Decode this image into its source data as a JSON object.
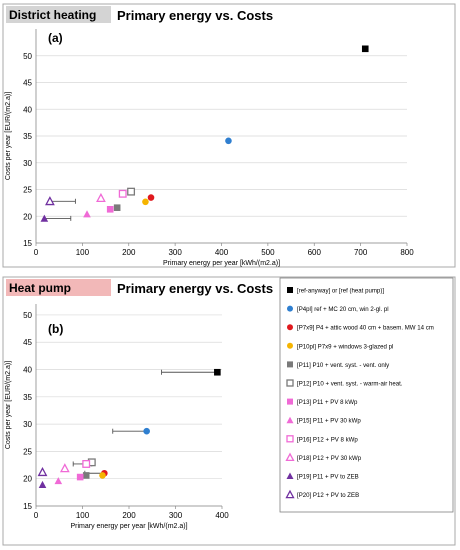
{
  "colors": {
    "district_badge": "#d4d4d4",
    "heatpump_badge": "#f2b8b8",
    "frame": "#a8a8a8",
    "black": "#000000",
    "blue": "#2f7fd0",
    "red": "#e0191e",
    "yellow": "#f5b400",
    "grey": "#7a7a7a",
    "pink": "#f06ad6",
    "purple": "#7030a0"
  },
  "chart_data": [
    {
      "type": "scatter",
      "badge": "District heating",
      "title": "Primary energy vs. Costs",
      "panel_label": "(a)",
      "xlabel": "Primary energy per year  [kWh/(m2.a)]",
      "ylabel": "Costs per year [EUR/(m2.a)]",
      "xlim": [
        0,
        800
      ],
      "ylim": [
        15,
        55
      ],
      "xticks": [
        "0",
        "100",
        "200",
        "300",
        "400",
        "500",
        "600",
        "700",
        "800"
      ],
      "yticks": [
        "15",
        "20",
        "25",
        "30",
        "35",
        "40",
        "45",
        "50"
      ],
      "points": [
        {
          "series": "ref",
          "x": 710,
          "y": 51.3
        },
        {
          "series": "P4pl",
          "x": 415,
          "y": 34.1
        },
        {
          "series": "P7x9",
          "x": 248,
          "y": 23.5
        },
        {
          "series": "P10pl",
          "x": 236,
          "y": 22.7
        },
        {
          "series": "P11",
          "x": 175,
          "y": 21.6
        },
        {
          "series": "P12",
          "x": 205,
          "y": 24.6
        },
        {
          "series": "P13",
          "x": 160,
          "y": 21.3
        },
        {
          "series": "P15",
          "x": 110,
          "y": 20.4
        },
        {
          "series": "P16",
          "x": 187,
          "y": 24.2
        },
        {
          "series": "P18",
          "x": 140,
          "y": 23.4
        },
        {
          "series": "P19",
          "x": 18,
          "y": 19.6
        },
        {
          "series": "P20",
          "x": 30,
          "y": 22.8
        }
      ],
      "error_bars": [
        {
          "y": 22.8,
          "x_from": 28,
          "x_to": 85
        },
        {
          "y": 19.6,
          "x_from": 18,
          "x_to": 75
        }
      ]
    },
    {
      "type": "scatter",
      "badge": "Heat pump",
      "title": "Primary energy vs. Costs",
      "panel_label": "(b)",
      "xlabel": "Primary energy per year  [kWh/(m2.a)]",
      "ylabel": "Costs per year [EUR/(m2.a)]",
      "xlim": [
        0,
        400
      ],
      "ylim": [
        15,
        52
      ],
      "xticks": [
        "0",
        "100",
        "200",
        "300",
        "400"
      ],
      "yticks": [
        "15",
        "20",
        "25",
        "30",
        "35",
        "40",
        "45",
        "50"
      ],
      "points": [
        {
          "series": "ref",
          "x": 390,
          "y": 39.5
        },
        {
          "series": "P4pl",
          "x": 238,
          "y": 28.7
        },
        {
          "series": "P7x9",
          "x": 147,
          "y": 21.0
        },
        {
          "series": "P10pl",
          "x": 143,
          "y": 20.6
        },
        {
          "series": "P11",
          "x": 108,
          "y": 20.6
        },
        {
          "series": "P12",
          "x": 120,
          "y": 23.0
        },
        {
          "series": "P13",
          "x": 95,
          "y": 20.3
        },
        {
          "series": "P15",
          "x": 48,
          "y": 19.6
        },
        {
          "series": "P16",
          "x": 108,
          "y": 22.7
        },
        {
          "series": "P18",
          "x": 62,
          "y": 21.9
        },
        {
          "series": "P19",
          "x": 14,
          "y": 18.9
        },
        {
          "series": "P20",
          "x": 14,
          "y": 21.2
        }
      ],
      "error_bars": [
        {
          "y": 39.5,
          "x_from": 270,
          "x_to": 390
        },
        {
          "y": 28.7,
          "x_from": 165,
          "x_to": 238
        },
        {
          "y": 21.0,
          "x_from": 105,
          "x_to": 147
        },
        {
          "y": 22.7,
          "x_from": 80,
          "x_to": 120
        }
      ]
    }
  ],
  "legend": [
    {
      "key": "ref",
      "marker": "square",
      "color": "#000000",
      "label": "[ref-anyway] or [ref (heat pump)]"
    },
    {
      "key": "P4pl",
      "marker": "circle",
      "color": "#2f7fd0",
      "label": "[P4pl] ref + MC 20 cm, win 2-gl. pl"
    },
    {
      "key": "P7x9",
      "marker": "circle",
      "color": "#e0191e",
      "label": "[P7x9] P4 + attic wood 40 cm + basem. MW 14 cm"
    },
    {
      "key": "P10pl",
      "marker": "circle",
      "color": "#f5b400",
      "label": "[P10pl] P7x9 + windows 3-glazed  pl"
    },
    {
      "key": "P11",
      "marker": "square",
      "color": "#7a7a7a",
      "label": "[P11] P10 + vent. syst. - vent. only"
    },
    {
      "key": "P12",
      "marker": "square-open",
      "color": "#7a7a7a",
      "label": "[P12] P10 + vent. syst. - warm-air heat."
    },
    {
      "key": "P13",
      "marker": "square",
      "color": "#f06ad6",
      "label": "[P13] P11 + PV  8 kWp"
    },
    {
      "key": "P15",
      "marker": "triangle",
      "color": "#f06ad6",
      "label": "[P15] P11 + PV  30 kWp"
    },
    {
      "key": "P16",
      "marker": "square-open",
      "color": "#f06ad6",
      "label": "[P16] P12 + PV  8 kWp"
    },
    {
      "key": "P18",
      "marker": "triangle-open",
      "color": "#f06ad6",
      "label": "[P18] P12 + PV  30 kWp"
    },
    {
      "key": "P19",
      "marker": "triangle",
      "color": "#7030a0",
      "label": "[P19] P11 + PV to ZEB"
    },
    {
      "key": "P20",
      "marker": "triangle-open",
      "color": "#7030a0",
      "label": "[P20] P12 + PV to ZEB"
    }
  ]
}
